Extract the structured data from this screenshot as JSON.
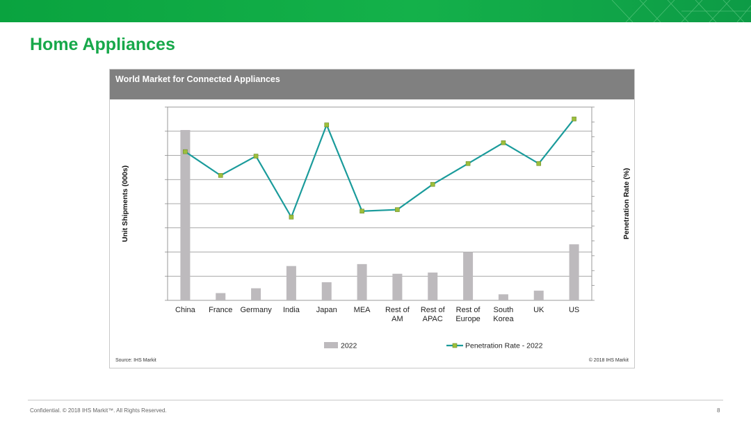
{
  "slide": {
    "title": "Home Appliances",
    "footer": "Confidential. © 2018 IHS Markit™. All Rights Reserved.",
    "page_number": "8"
  },
  "panel": {
    "title": "World Market for Connected Appliances",
    "source": "Source: IHS Markit",
    "copyright": "© 2018 IHS Markit"
  },
  "colors": {
    "brand_green": "#17a84a",
    "header_gray": "#808080",
    "bar_gray": "#bdbabd",
    "line_teal": "#1a9b9b",
    "marker_fill": "#9dbf3b"
  },
  "chart_data": {
    "type": "bar",
    "title": "World Market for Connected Appliances",
    "xlabel": "",
    "ylabel": "Unit Shipments (000s)",
    "y2label": "Penetration Rate (%)",
    "categories": [
      "China",
      "France",
      "Germany",
      "India",
      "Japan",
      "MEA",
      "Rest of AM",
      "Rest of APAC",
      "Rest of Europe",
      "South Korea",
      "UK",
      "US"
    ],
    "category_lines": [
      [
        "China"
      ],
      [
        "France"
      ],
      [
        "Germany"
      ],
      [
        "India"
      ],
      [
        "Japan"
      ],
      [
        "MEA"
      ],
      [
        "Rest of",
        "AM"
      ],
      [
        "Rest of",
        "APAC"
      ],
      [
        "Rest of",
        "Europe"
      ],
      [
        "South",
        "Korea"
      ],
      [
        "UK"
      ],
      [
        "US"
      ]
    ],
    "ylim": [
      0,
      8
    ],
    "y2lim": [
      0,
      13
    ],
    "grid": true,
    "legend_position": "bottom",
    "series": [
      {
        "name": "2022",
        "type": "bar",
        "axis": "left",
        "values": [
          7.05,
          0.3,
          0.5,
          1.42,
          0.75,
          1.5,
          1.1,
          1.15,
          2.0,
          0.25,
          0.4,
          2.32
        ]
      },
      {
        "name": "Penetration Rate - 2022",
        "type": "line",
        "axis": "right",
        "values": [
          10.0,
          8.4,
          9.7,
          5.6,
          11.8,
          6.0,
          6.1,
          7.8,
          9.2,
          10.6,
          9.2,
          12.2
        ]
      }
    ]
  }
}
